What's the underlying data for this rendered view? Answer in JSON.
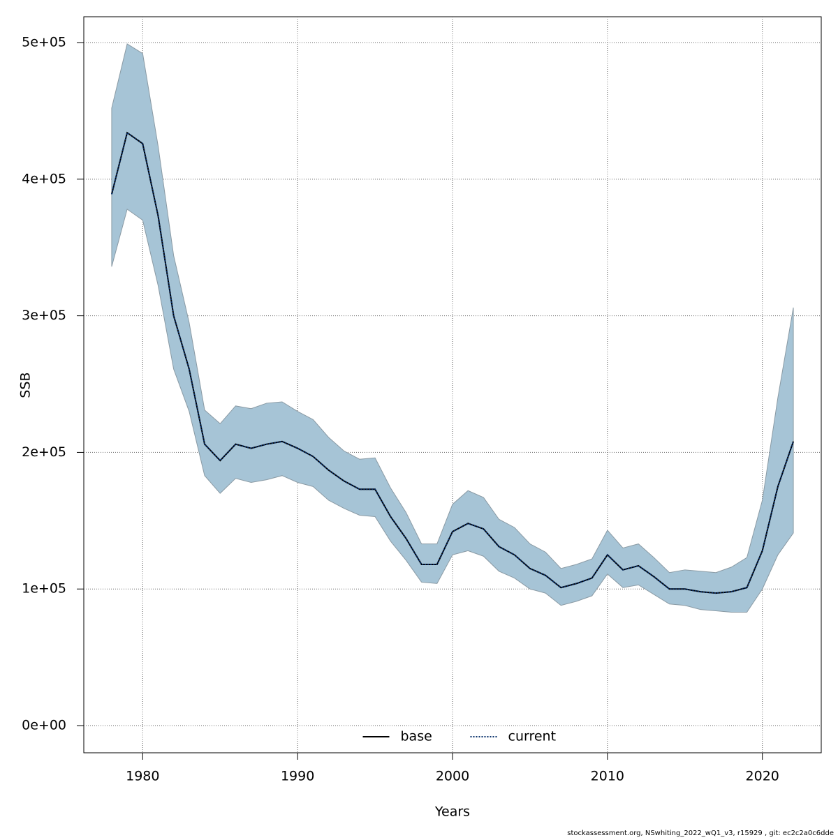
{
  "chart_data": {
    "type": "line",
    "x_label": "Years",
    "y_label": "SSB",
    "footer": "stockassessment.org, NSwhiting_2022_wQ1_v3, r15929 , git: ec2c2a0c6dde",
    "x": [
      1978,
      1979,
      1980,
      1981,
      1982,
      1983,
      1984,
      1985,
      1986,
      1987,
      1988,
      1989,
      1990,
      1991,
      1992,
      1993,
      1994,
      1995,
      1996,
      1997,
      1998,
      1999,
      2000,
      2001,
      2002,
      2003,
      2004,
      2005,
      2006,
      2007,
      2008,
      2009,
      2010,
      2011,
      2012,
      2013,
      2014,
      2015,
      2016,
      2017,
      2018,
      2019,
      2020,
      2021,
      2022
    ],
    "series": [
      {
        "name": "base",
        "color": "#000000",
        "dash": false,
        "values": [
          389000,
          434000,
          426000,
          373000,
          300000,
          261000,
          206000,
          194000,
          206000,
          203000,
          206000,
          208000,
          203000,
          197000,
          187000,
          179000,
          173000,
          173000,
          153000,
          137000,
          118000,
          118000,
          142000,
          148000,
          144000,
          131000,
          125000,
          115000,
          110000,
          101000,
          104000,
          108000,
          125000,
          114000,
          117000,
          109000,
          100000,
          100000,
          98000,
          97000,
          98000,
          101000,
          128000,
          175000,
          208000
        ]
      },
      {
        "name": "current",
        "color": "#08306b",
        "dash": true,
        "band_color": "#a6c4d6",
        "values": [
          389000,
          434000,
          426000,
          373000,
          300000,
          261000,
          206000,
          194000,
          206000,
          203000,
          206000,
          208000,
          203000,
          197000,
          187000,
          179000,
          173000,
          173000,
          153000,
          137000,
          118000,
          118000,
          142000,
          148000,
          144000,
          131000,
          125000,
          115000,
          110000,
          101000,
          104000,
          108000,
          125000,
          114000,
          117000,
          109000,
          100000,
          100000,
          98000,
          97000,
          98000,
          101000,
          128000,
          175000,
          208000
        ],
        "lower": [
          336000,
          378000,
          370000,
          322000,
          261000,
          230000,
          183000,
          170000,
          181000,
          178000,
          180000,
          183000,
          178000,
          175000,
          165000,
          159000,
          154000,
          153000,
          135000,
          121000,
          105000,
          104000,
          125000,
          128000,
          124000,
          113000,
          108000,
          100000,
          97000,
          88000,
          91000,
          95000,
          111000,
          101000,
          103000,
          96000,
          89000,
          88000,
          85000,
          84000,
          83000,
          83000,
          100000,
          125000,
          141000
        ],
        "upper": [
          452000,
          499000,
          492000,
          424000,
          344000,
          295000,
          231000,
          221000,
          234000,
          232000,
          236000,
          237000,
          230000,
          224000,
          211000,
          201000,
          195000,
          196000,
          174000,
          156000,
          133000,
          133000,
          162000,
          172000,
          167000,
          151000,
          145000,
          133000,
          127000,
          115000,
          118000,
          122000,
          143000,
          130000,
          133000,
          123000,
          112000,
          114000,
          113000,
          112000,
          116000,
          123000,
          165000,
          240000,
          306000
        ]
      }
    ],
    "xlim": [
      1976.2,
      2023.8
    ],
    "ylim": [
      -19900,
      518900
    ],
    "xticks": [
      1980,
      1990,
      2000,
      2010,
      2020
    ],
    "yticks": [
      {
        "value": 0,
        "label": "0e+00"
      },
      {
        "value": 100000,
        "label": "1e+05"
      },
      {
        "value": 200000,
        "label": "2e+05"
      },
      {
        "value": 300000,
        "label": "3e+05"
      },
      {
        "value": 400000,
        "label": "4e+05"
      },
      {
        "value": 500000,
        "label": "5e+05"
      }
    ],
    "grid": true,
    "legend": "bottom"
  }
}
